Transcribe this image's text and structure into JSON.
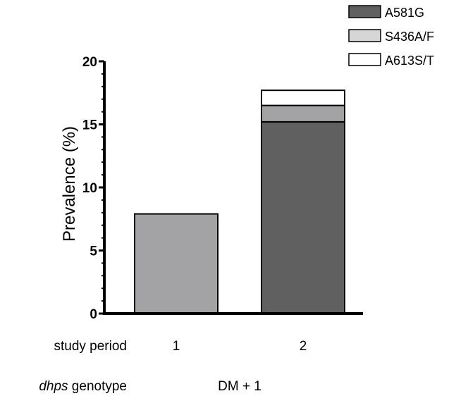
{
  "chart_data": {
    "type": "bar",
    "stacked": true,
    "categories": [
      "1",
      "2"
    ],
    "series": [
      {
        "name": "A581G",
        "color": "#606060",
        "values": [
          0,
          15.2
        ]
      },
      {
        "name": "",
        "color": "#a3a3a6",
        "values": [
          7.9,
          1.3
        ]
      },
      {
        "name": "S436A/F",
        "color": "#d6d6d6",
        "values": [
          0,
          0
        ]
      },
      {
        "name": "A613S/T",
        "color": "#ffffff",
        "values": [
          0,
          1.2
        ]
      }
    ],
    "ylabel": "Prevalence (%)",
    "ylim": [
      0,
      20
    ],
    "yticks": [
      0,
      5,
      10,
      15,
      20
    ],
    "legend": "top-right",
    "grid": false,
    "row_labels": {
      "study_period_label": "study period",
      "genotype_label_italic": "dhps",
      "genotype_label_rest": " genotype",
      "genotype_value": "DM + 1"
    }
  }
}
